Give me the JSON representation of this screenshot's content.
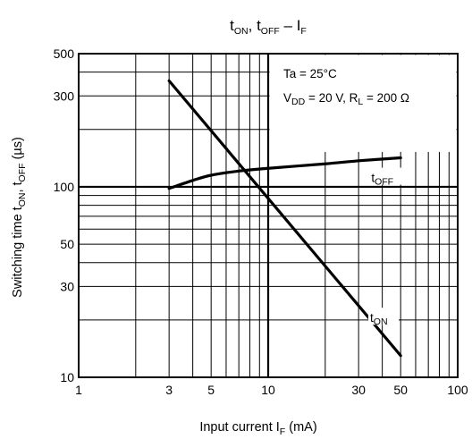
{
  "chart_data": {
    "type": "line",
    "title": {
      "main": "t",
      "sub1": "ON",
      "sep": ", t",
      "sub2": "OFF",
      "dash": " – I",
      "sub3": "F"
    },
    "xlabel": {
      "text": "Input current   I",
      "sub": "F",
      "unit": "   (mA)"
    },
    "ylabel": {
      "prefix": "Switching time   t",
      "sub1": "ON",
      "mid": ", t",
      "sub2": "OFF",
      "unit": "   (µs)"
    },
    "x_scale": "log",
    "y_scale": "log",
    "xlim": [
      1,
      100
    ],
    "ylim": [
      10,
      500
    ],
    "x_ticks": [
      1,
      3,
      5,
      10,
      30,
      50,
      100
    ],
    "x_tick_labels": [
      "1",
      "3",
      "5",
      "10",
      "30",
      "50",
      "100"
    ],
    "y_ticks": [
      10,
      30,
      50,
      100,
      300,
      500
    ],
    "y_tick_labels": [
      "10",
      "30",
      "50",
      "100",
      "300",
      "500"
    ],
    "grid": true,
    "annotations": {
      "line1": "Ta = 25°C",
      "line2_a": "V",
      "line2_sub1": "DD",
      "line2_b": " = 20 V, R",
      "line2_sub2": "L",
      "line2_c": " = 200 Ω"
    },
    "series": [
      {
        "name": "tOFF",
        "label": "t",
        "label_sub": "OFF",
        "x": [
          3,
          4,
          5,
          7,
          10,
          20,
          30,
          50
        ],
        "y": [
          98,
          108,
          115,
          121,
          125,
          132,
          137,
          142
        ]
      },
      {
        "name": "tON",
        "label": "t",
        "label_sub": "ON",
        "x": [
          3,
          50
        ],
        "y": [
          360,
          13
        ]
      }
    ]
  }
}
